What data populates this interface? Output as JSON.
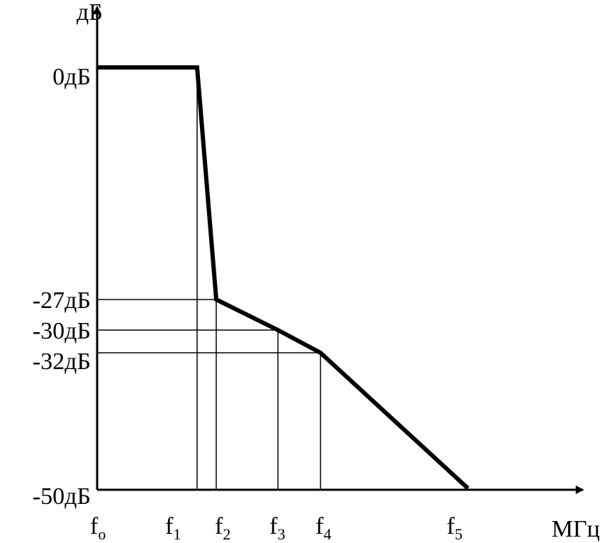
{
  "axes": {
    "y_label": "дБ",
    "x_label": "МГц"
  },
  "y_labels": [
    "0дБ",
    "-27дБ",
    "-30дБ",
    "-32дБ",
    "-50дБ"
  ],
  "x_labels": [
    {
      "base": "f",
      "sub": "o"
    },
    {
      "base": "f",
      "sub": "1"
    },
    {
      "base": "f",
      "sub": "2"
    },
    {
      "base": "f",
      "sub": "3"
    },
    {
      "base": "f",
      "sub": "4"
    },
    {
      "base": "f",
      "sub": "5"
    }
  ]
}
